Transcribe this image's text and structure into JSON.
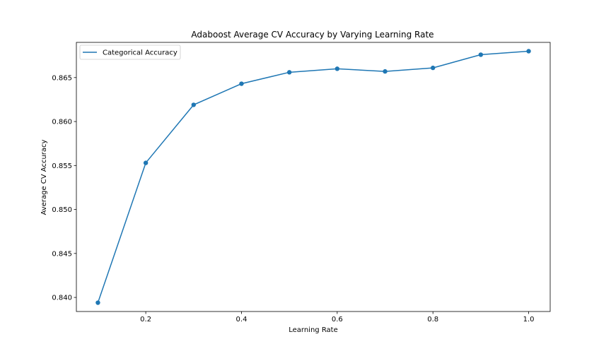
{
  "chart_data": {
    "type": "line",
    "title": "Adaboost Average CV Accuracy by Varying Learning Rate",
    "xlabel": "Learning Rate",
    "ylabel": "Average CV Accuracy",
    "x": [
      0.1,
      0.2,
      0.3,
      0.4,
      0.5,
      0.6,
      0.7,
      0.8,
      0.9,
      1.0
    ],
    "series": [
      {
        "name": "Categorical Accuracy",
        "color": "#1f77b4",
        "values": [
          0.8394,
          0.8553,
          0.8619,
          0.8643,
          0.8656,
          0.866,
          0.8657,
          0.8661,
          0.8676,
          0.868
        ]
      }
    ],
    "xlim": [
      0.055,
      1.045
    ],
    "ylim": [
      0.8384,
      0.869
    ],
    "xticks": [
      0.2,
      0.4,
      0.6,
      0.8,
      1.0
    ],
    "xtick_labels": [
      "0.2",
      "0.4",
      "0.6",
      "0.8",
      "1.0"
    ],
    "yticks": [
      0.84,
      0.845,
      0.85,
      0.855,
      0.86,
      0.865
    ],
    "ytick_labels": [
      "0.840",
      "0.845",
      "0.850",
      "0.855",
      "0.860",
      "0.865"
    ],
    "grid": false,
    "legend": "top-left"
  }
}
